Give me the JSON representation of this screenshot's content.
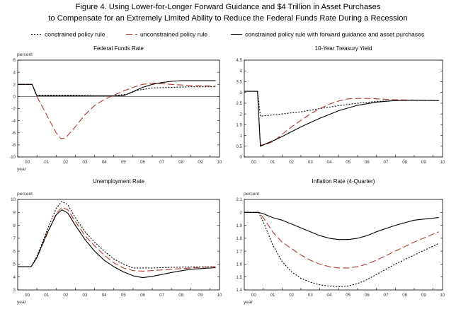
{
  "figure": {
    "title_line1": "Figure 4. Using Lower-for-Longer Forward Guidance and $4 Trillion in Asset Purchases",
    "title_line2": "to Compensate for an Extremely Limited Ability to Reduce the Federal Funds Rate During a Recession"
  },
  "legend": [
    {
      "label": "constrained policy rule",
      "color": "#000000",
      "dash": "2,2"
    },
    {
      "label": "unconstrained policy rule",
      "color": "#b03a2e",
      "dash": "9,4"
    },
    {
      "label": "constrained policy rule with forward guidance and asset purchases",
      "color": "#000000",
      "dash": ""
    }
  ],
  "chart_data": [
    {
      "type": "line",
      "title": "Federal Funds Rate",
      "ylabel": "percent",
      "xlabel": "year",
      "ylim": [
        -10,
        6
      ],
      "yticks": [
        6,
        4,
        2,
        0,
        -2,
        -4,
        -6,
        -8,
        -10
      ],
      "xlim": [
        0,
        10.5
      ],
      "xticks": [
        0,
        1,
        2,
        3,
        4,
        5,
        6,
        7,
        8,
        9,
        10
      ],
      "xticklabels": [
        "00",
        "01",
        "02",
        "03",
        "04",
        "05",
        "06",
        "07",
        "08",
        "09",
        "10"
      ],
      "grid": false,
      "series": [
        {
          "name": "constrained policy rule",
          "x": [
            0,
            0.75,
            1.0,
            2,
            3,
            4,
            5,
            5.75,
            6.2,
            7,
            8,
            9,
            10.3
          ],
          "y": [
            2,
            2,
            0.2,
            0.2,
            0.2,
            0.1,
            0.1,
            0.4,
            1.0,
            1.4,
            1.5,
            1.6,
            1.6
          ]
        },
        {
          "name": "unconstrained policy rule",
          "x": [
            0,
            0.75,
            1.0,
            1.5,
            2,
            2.25,
            2.5,
            3,
            3.5,
            4,
            4.5,
            5,
            5.5,
            6,
            6.5,
            7,
            8,
            9,
            10.3
          ],
          "y": [
            2,
            2,
            0,
            -3,
            -6,
            -7,
            -6.8,
            -5,
            -3,
            -1.5,
            -0.5,
            0.2,
            0.9,
            1.5,
            2.0,
            2.2,
            2.0,
            1.8,
            1.7
          ]
        },
        {
          "name": "constrained policy rule with forward guidance and asset purchases",
          "x": [
            0,
            0.75,
            1.0,
            2,
            3,
            4,
            5,
            5.5,
            6,
            6.5,
            7,
            7.5,
            8,
            8.5,
            9,
            9.5,
            10.3
          ],
          "y": [
            2,
            2,
            0.1,
            0.1,
            0.1,
            0.1,
            0.1,
            0.1,
            0.8,
            1.5,
            2.0,
            2.3,
            2.5,
            2.6,
            2.6,
            2.6,
            2.6
          ]
        }
      ]
    },
    {
      "type": "line",
      "title": "10-Year Treasury Yield",
      "ylabel": "",
      "xlabel": "",
      "ylim": [
        0,
        4.5
      ],
      "yticks": [
        4.5,
        4.0,
        3.5,
        3.0,
        2.5,
        2.0,
        1.5,
        1.0,
        0.5,
        0.0
      ],
      "xlim": [
        0,
        10.5
      ],
      "xticks": [
        0,
        1,
        2,
        3,
        4,
        5,
        6,
        7,
        8,
        9,
        10
      ],
      "xticklabels": [
        "00",
        "01",
        "02",
        "03",
        "04",
        "05",
        "06",
        "07",
        "08",
        "09",
        "10"
      ],
      "grid": false,
      "series": [
        {
          "name": "constrained policy rule",
          "x": [
            0,
            0.7,
            0.85,
            1.5,
            2,
            3,
            4,
            5,
            6,
            7,
            8,
            9,
            10.3
          ],
          "y": [
            3.05,
            3.05,
            1.9,
            1.95,
            2.0,
            2.1,
            2.25,
            2.38,
            2.5,
            2.58,
            2.62,
            2.63,
            2.62
          ]
        },
        {
          "name": "unconstrained policy rule",
          "x": [
            0,
            0.7,
            0.85,
            1.2,
            1.6,
            2,
            2.5,
            3,
            3.5,
            4,
            4.5,
            5,
            5.5,
            6,
            6.5,
            7,
            8,
            9,
            10.3
          ],
          "y": [
            3.05,
            3.05,
            0.55,
            0.6,
            0.75,
            1.05,
            1.4,
            1.7,
            2.0,
            2.25,
            2.45,
            2.6,
            2.7,
            2.72,
            2.72,
            2.7,
            2.66,
            2.64,
            2.62
          ]
        },
        {
          "name": "constrained policy rule with forward guidance and asset purchases",
          "x": [
            0,
            0.7,
            0.85,
            1.5,
            2,
            3,
            4,
            5,
            6,
            7,
            8,
            9,
            10.3
          ],
          "y": [
            3.05,
            3.05,
            0.5,
            0.75,
            0.95,
            1.4,
            1.8,
            2.15,
            2.4,
            2.55,
            2.62,
            2.64,
            2.62
          ]
        }
      ]
    },
    {
      "type": "line",
      "title": "Unemployment Rate",
      "ylabel": "percent",
      "xlabel": "year",
      "ylim": [
        3,
        10
      ],
      "yticks": [
        10,
        9,
        8,
        7,
        6,
        5,
        4,
        3
      ],
      "xlim": [
        0,
        10.5
      ],
      "xticks": [
        0,
        1,
        2,
        3,
        4,
        5,
        6,
        7,
        8,
        9,
        10
      ],
      "xticklabels": [
        "00",
        "01",
        "02",
        "03",
        "04",
        "05",
        "06",
        "07",
        "08",
        "09",
        "10"
      ],
      "grid": false,
      "series": [
        {
          "name": "constrained policy rule",
          "x": [
            0,
            0.7,
            1,
            1.5,
            2,
            2.3,
            2.6,
            3,
            3.5,
            4,
            4.5,
            5,
            5.5,
            6,
            6.5,
            7,
            8,
            9,
            10.3
          ],
          "y": [
            4.8,
            4.8,
            5.6,
            7.5,
            9.3,
            9.85,
            9.6,
            8.6,
            7.5,
            6.7,
            6.0,
            5.4,
            5.0,
            4.7,
            4.7,
            4.7,
            4.75,
            4.78,
            4.8
          ]
        },
        {
          "name": "unconstrained policy rule",
          "x": [
            0,
            0.7,
            1,
            1.5,
            2,
            2.3,
            2.6,
            3,
            3.5,
            4,
            4.5,
            5,
            5.5,
            6,
            6.5,
            7,
            8,
            9,
            10.3
          ],
          "y": [
            4.8,
            4.8,
            5.5,
            7.2,
            8.9,
            9.4,
            9.2,
            8.3,
            7.2,
            6.4,
            5.7,
            5.1,
            4.7,
            4.5,
            4.45,
            4.5,
            4.6,
            4.7,
            4.8
          ]
        },
        {
          "name": "constrained policy rule with forward guidance and asset purchases",
          "x": [
            0,
            0.7,
            1,
            1.5,
            2,
            2.3,
            2.6,
            3,
            3.5,
            4,
            4.5,
            5,
            5.5,
            6,
            6.5,
            7,
            8,
            9,
            10.3
          ],
          "y": [
            4.8,
            4.8,
            5.5,
            7.3,
            8.8,
            9.2,
            8.95,
            8.0,
            6.9,
            6.0,
            5.3,
            4.8,
            4.4,
            4.1,
            3.95,
            4.05,
            4.35,
            4.6,
            4.72
          ]
        }
      ]
    },
    {
      "type": "line",
      "title": "Inflation Rate (4-Quarter)",
      "ylabel": "percent",
      "xlabel": "year",
      "ylim": [
        1.4,
        2.1
      ],
      "yticks": [
        2.1,
        2.0,
        1.9,
        1.8,
        1.7,
        1.6,
        1.5,
        1.4
      ],
      "xlim": [
        0,
        10.5
      ],
      "xticks": [
        0,
        1,
        2,
        3,
        4,
        5,
        6,
        7,
        8,
        9,
        10
      ],
      "xticklabels": [
        "00",
        "01",
        "02",
        "03",
        "04",
        "05",
        "06",
        "07",
        "08",
        "09",
        "10"
      ],
      "grid": false,
      "series": [
        {
          "name": "constrained policy rule",
          "x": [
            0,
            0.75,
            1,
            1.5,
            2,
            2.5,
            3,
            3.5,
            4,
            4.5,
            5,
            5.5,
            6,
            6.5,
            7,
            8,
            9,
            10.3
          ],
          "y": [
            2.0,
            2.0,
            1.93,
            1.75,
            1.62,
            1.54,
            1.49,
            1.46,
            1.44,
            1.43,
            1.425,
            1.43,
            1.45,
            1.48,
            1.52,
            1.6,
            1.67,
            1.76
          ]
        },
        {
          "name": "unconstrained policy rule",
          "x": [
            0,
            0.75,
            1,
            1.5,
            2,
            2.5,
            3,
            3.5,
            4,
            4.5,
            5,
            5.5,
            6,
            6.5,
            7,
            8,
            9,
            10.3
          ],
          "y": [
            2.0,
            2.0,
            1.96,
            1.85,
            1.77,
            1.72,
            1.67,
            1.63,
            1.6,
            1.58,
            1.57,
            1.57,
            1.58,
            1.6,
            1.63,
            1.7,
            1.77,
            1.85
          ]
        },
        {
          "name": "constrained policy rule with forward guidance and asset purchases",
          "x": [
            0,
            0.75,
            1,
            1.5,
            2,
            2.5,
            3,
            3.5,
            4,
            4.5,
            5,
            5.5,
            6,
            6.5,
            7,
            8,
            9,
            10.3
          ],
          "y": [
            2.0,
            2.0,
            1.99,
            1.96,
            1.94,
            1.91,
            1.88,
            1.85,
            1.82,
            1.8,
            1.79,
            1.79,
            1.8,
            1.82,
            1.85,
            1.9,
            1.94,
            1.96
          ]
        }
      ]
    }
  ]
}
